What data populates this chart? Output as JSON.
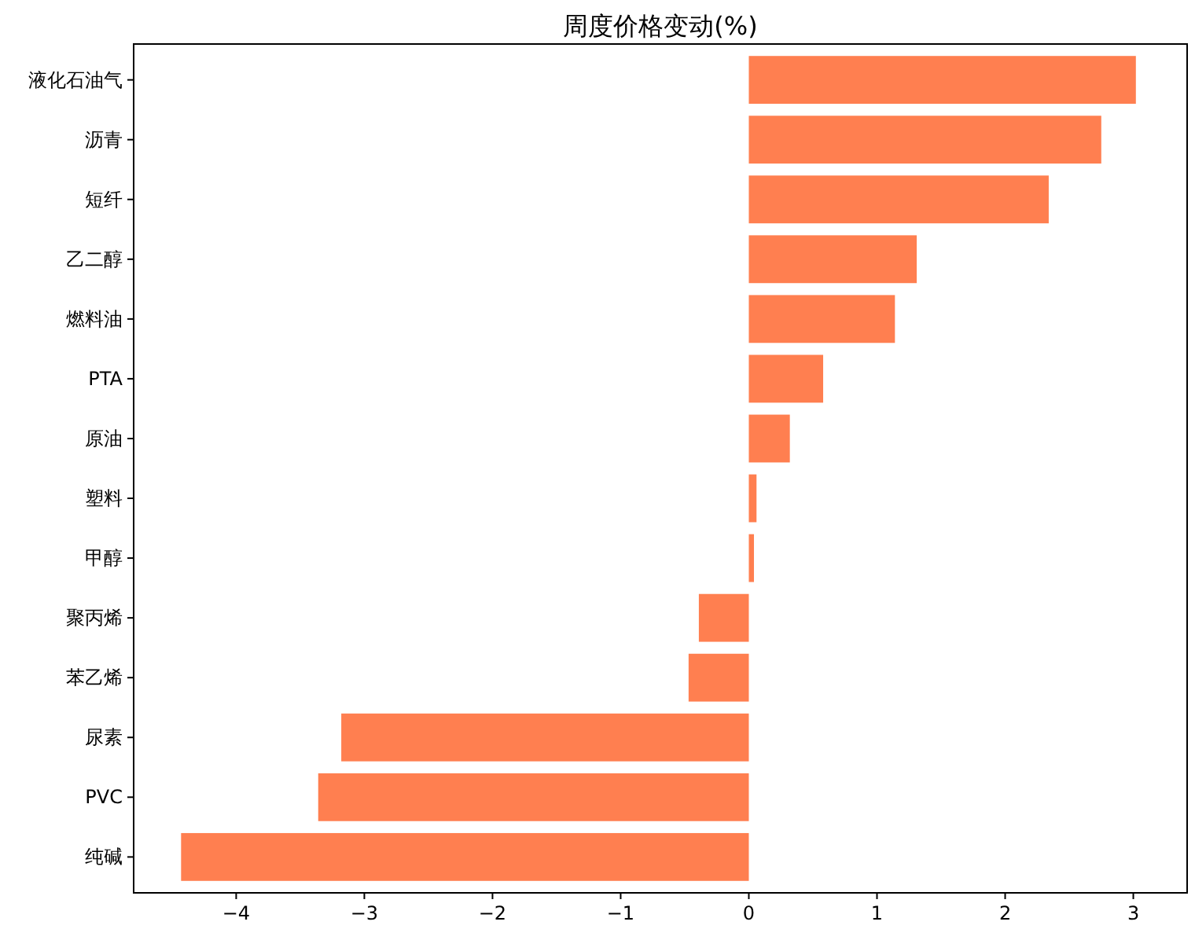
{
  "chart_data": {
    "type": "bar",
    "orientation": "horizontal",
    "title": "周度价格变动(%)",
    "categories": [
      "液化石油气",
      "沥青",
      "短纤",
      "乙二醇",
      "燃料油",
      "PTA",
      "原油",
      "塑料",
      "甲醇",
      "聚丙烯",
      "苯乙烯",
      "尿素",
      "PVC",
      "纯碱"
    ],
    "values": [
      3.02,
      2.75,
      2.34,
      1.31,
      1.14,
      0.58,
      0.32,
      0.06,
      0.04,
      -0.39,
      -0.47,
      -3.18,
      -3.36,
      -4.43
    ],
    "color": "#ff7f50",
    "xlim": [
      -4.8,
      3.42
    ],
    "xticks": [
      {
        "value": -4,
        "label": "−4"
      },
      {
        "value": -3,
        "label": "−3"
      },
      {
        "value": -2,
        "label": "−2"
      },
      {
        "value": -1,
        "label": "−1"
      },
      0,
      1,
      2,
      3
    ]
  }
}
